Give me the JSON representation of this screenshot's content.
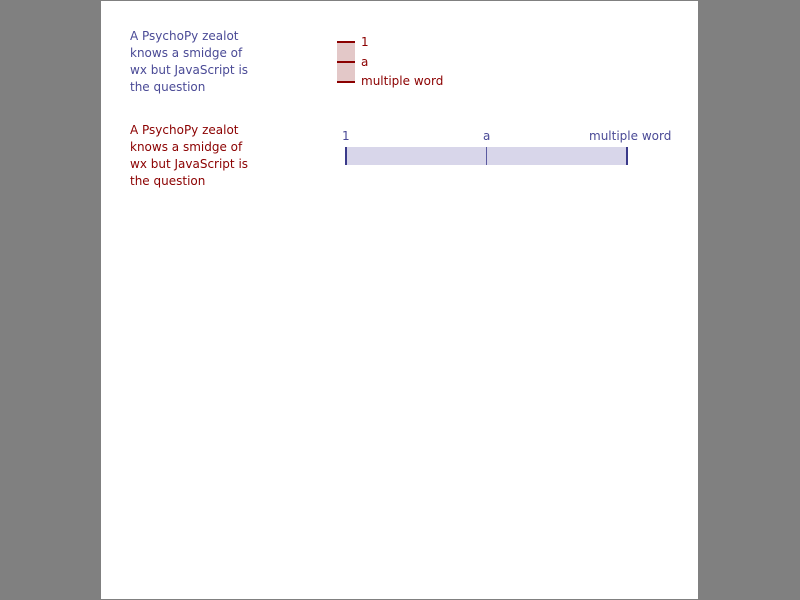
{
  "background_color": "#808080",
  "page_color": "#ffffff",
  "rating_vertical": {
    "prompt": "A PsychoPy zealot\nknows a smidge of\nwx but JavaScript is\nthe question",
    "labels": [
      "1",
      "a",
      "multiple word"
    ],
    "color": "#8b0000",
    "prompt_color": "#4a4a96"
  },
  "rating_horizontal": {
    "prompt": "A PsychoPy zealot\nknows a smidge of\nwx but JavaScript is\nthe question",
    "labels": [
      "1",
      "a",
      "multiple word"
    ],
    "color": "#4a4a96",
    "prompt_color": "#8b0000"
  }
}
